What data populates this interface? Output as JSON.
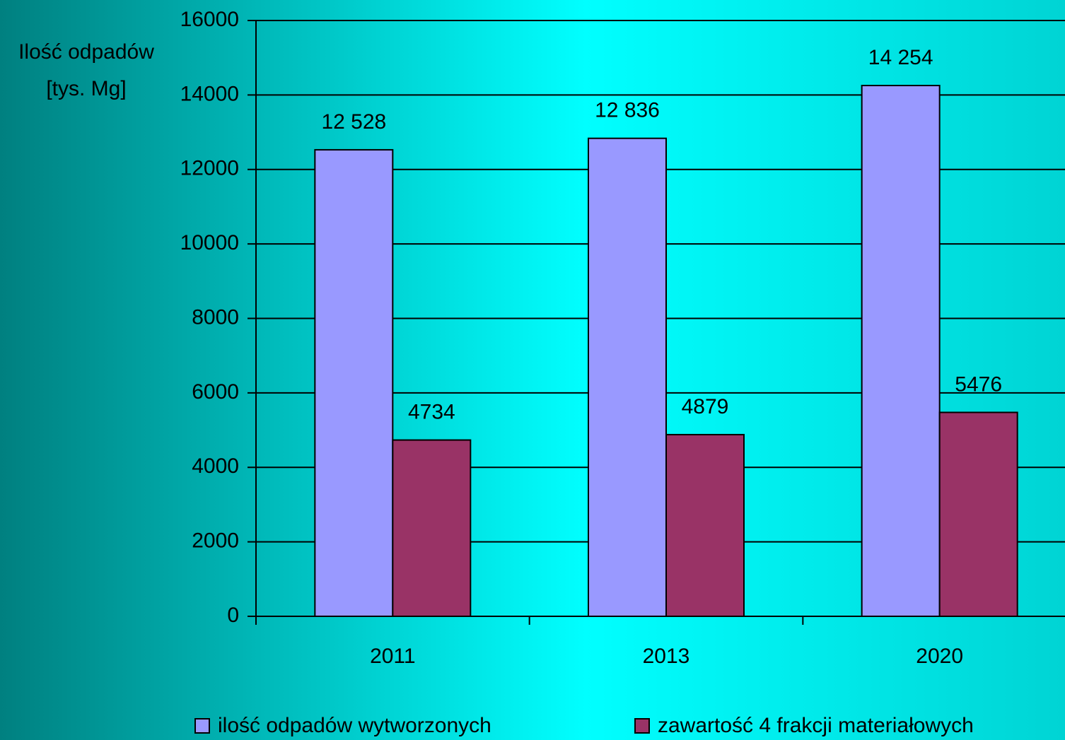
{
  "chart_data": {
    "type": "bar",
    "y_label": [
      "Ilość odpadów",
      "[tys. Mg]"
    ],
    "categories": [
      "2011",
      "2013",
      "2020"
    ],
    "series": [
      {
        "name": "ilość odpadów wytworzonych",
        "color": "#9999ff",
        "values": [
          12528,
          12836,
          14254
        ],
        "value_labels": [
          "12 528",
          "12 836",
          "14 254"
        ]
      },
      {
        "name": "zawartość 4 frakcji materiałowych",
        "color": "#993366",
        "values": [
          4734,
          4879,
          5476
        ],
        "value_labels": [
          "4734",
          "4879",
          "5476"
        ]
      }
    ],
    "ylim": [
      0,
      16000
    ],
    "yticks": [
      0,
      2000,
      4000,
      6000,
      8000,
      10000,
      12000,
      14000,
      16000
    ],
    "grid": true,
    "legend": "bottom"
  }
}
